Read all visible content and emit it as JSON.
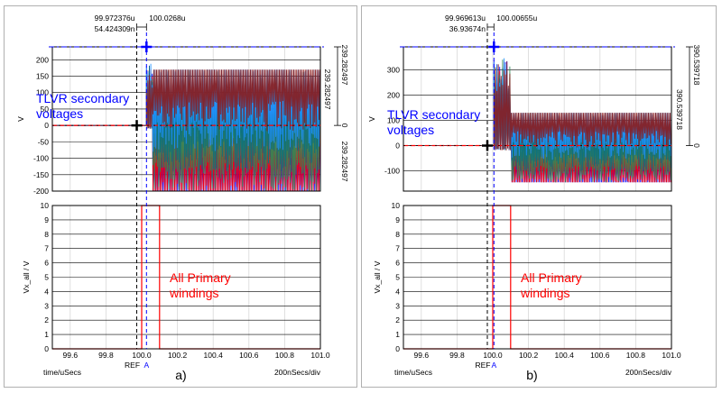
{
  "colors": {
    "background": "#ffffff",
    "grid": "#d8d8d8",
    "axis": "#000000",
    "ref_cursor": "#000000",
    "a_cursor": "#0000ff",
    "annotation_blue": "#0000ff",
    "annotation_red": "#ff0000",
    "primary_trace": "#ff0000",
    "secondary_traces": [
      "#0000ff",
      "#ff0000",
      "#2e8b57",
      "#0a7080",
      "#1e90ff",
      "#8b1a1a"
    ]
  },
  "chart_data": [
    {
      "type": "line",
      "panel_caption": "a)",
      "x_unit_label": "time/uSecs",
      "x_scale_label": "200nSecs/div",
      "xlim": [
        99.5,
        101.0
      ],
      "x_ticks": [
        "99.6",
        "99.8",
        "100.0",
        "100.2",
        "100.4",
        "100.6",
        "100.8",
        "101.0"
      ],
      "cursors": {
        "ref_label": "REF",
        "a_label": "A",
        "ref_x": 99.972376,
        "a_x": 100.0268,
        "ref_x_readout": "99.972376u",
        "a_x_readout": "100.0268u",
        "delta_readout": "54.424309n",
        "a_y_readout": "239.282497",
        "delta_y_readout": "239.282497",
        "ref_y_readout": "0",
        "a_y": 239.282497
      },
      "top": {
        "ylabel": "V",
        "ylim": [
          -200,
          239.282497
        ],
        "y_ticks": [
          "200",
          "150",
          "100",
          "50",
          "0",
          "-50",
          "-100",
          "-150",
          "-200"
        ],
        "annotation": [
          "TLVR secondary",
          "voltages"
        ],
        "switch_time": 100.06,
        "envelope": {
          "spike_until": 100.06,
          "spike_amplitude": 200,
          "steady_low": -200,
          "steady_high": 170
        }
      },
      "bottom": {
        "ylabel": "Vx_all / V",
        "ylim": [
          0,
          10
        ],
        "y_ticks": [
          "10",
          "9",
          "8",
          "7",
          "6",
          "5",
          "4",
          "3",
          "2",
          "1",
          "0"
        ],
        "annotation": [
          "All Primary",
          "windings"
        ],
        "pulse": {
          "x_start": 100.0,
          "x_end": 100.1,
          "high": 10,
          "low": 0
        }
      }
    },
    {
      "type": "line",
      "panel_caption": "b)",
      "x_unit_label": "time/uSecs",
      "x_scale_label": "200nSecs/div",
      "xlim": [
        99.5,
        101.0
      ],
      "x_ticks": [
        "99.6",
        "99.8",
        "100.0",
        "100.2",
        "100.4",
        "100.6",
        "100.8",
        "101.0"
      ],
      "cursors": {
        "ref_label": "REF",
        "a_label": "A",
        "ref_x": 99.969613,
        "a_x": 100.00655,
        "ref_x_readout": "99.969613u",
        "a_x_readout": "100.00655u",
        "delta_readout": "36.93674n",
        "a_y_readout": "390.539718",
        "delta_y_readout": "390.539718",
        "ref_y_readout": "0",
        "a_y": 390.539718
      },
      "top": {
        "ylabel": "V",
        "ylim": [
          -180,
          390.539718
        ],
        "y_ticks": [
          "300",
          "200",
          "100",
          "0",
          "-100"
        ],
        "annotation": [
          "TLVR secondary",
          "voltages"
        ],
        "switch_time": 100.1,
        "envelope": {
          "spike_until": 100.1,
          "spike_amplitude": 370,
          "steady_low": -145,
          "steady_high": 130
        }
      },
      "bottom": {
        "ylabel": "Vx_all / V",
        "ylim": [
          0,
          10
        ],
        "y_ticks": [
          "10",
          "9",
          "8",
          "7",
          "6",
          "5",
          "4",
          "3",
          "2",
          "1",
          "0"
        ],
        "annotation": [
          "All Primary",
          "windings"
        ],
        "pulse": {
          "x_start": 100.0,
          "x_end": 100.1,
          "high": 10,
          "low": 0
        }
      }
    }
  ]
}
